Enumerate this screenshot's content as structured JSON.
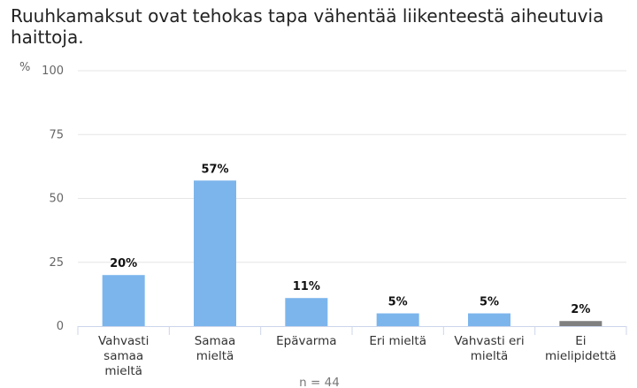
{
  "chart_data": {
    "type": "bar",
    "title": "Ruuhkamaksut ovat tehokas tapa vähentää liikenteestä aiheutuvia haittoja.",
    "ylabel": "%",
    "xlabel": "",
    "ylim": [
      0,
      100
    ],
    "yticks": [
      0,
      25,
      50,
      75,
      100
    ],
    "categories": [
      "Vahvasti samaa mieltä",
      "Samaa mieltä",
      "Epävarma",
      "Eri mieltä",
      "Vahvasti eri mieltä",
      "Ei mielipidettä"
    ],
    "category_lines": [
      [
        "Vahvasti",
        "samaa",
        "mieltä"
      ],
      [
        "Samaa",
        "mieltä"
      ],
      [
        "Epävarma"
      ],
      [
        "Eri mieltä"
      ],
      [
        "Vahvasti eri",
        "mieltä"
      ],
      [
        "Ei",
        "mielipidettä"
      ]
    ],
    "values": [
      20,
      57,
      11,
      5,
      5,
      2
    ],
    "data_labels": [
      "20%",
      "57%",
      "11%",
      "5%",
      "5%",
      "2%"
    ],
    "colors": [
      "#7cb5ec",
      "#7cb5ec",
      "#7cb5ec",
      "#7cb5ec",
      "#7cb5ec",
      "#808080"
    ],
    "grid": true,
    "note": "n = 44"
  }
}
